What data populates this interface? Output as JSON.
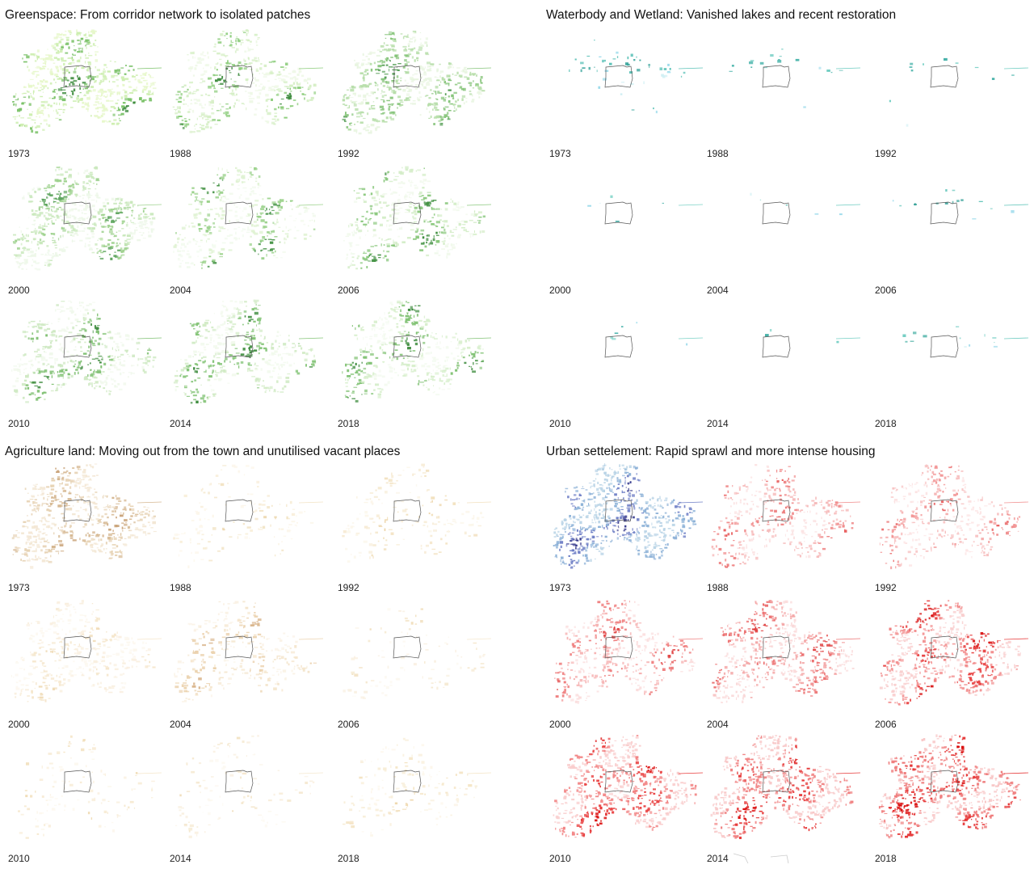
{
  "panels": [
    {
      "id": "greenspace",
      "title": "Greenspace: From corridor network to isolated patches",
      "maps": [
        {
          "year": "1973",
          "intensity": 0.9,
          "tones": [
            "#3d8b3d",
            "#7cc26a",
            "#cdeeb0",
            "#e6f7c9"
          ]
        },
        {
          "year": "1988",
          "intensity": 0.75,
          "tones": [
            "#3d8b3d",
            "#8bcc7a",
            "#d6efc6",
            "#eef8e6"
          ]
        },
        {
          "year": "1992",
          "intensity": 0.85,
          "tones": [
            "#4f9a4f",
            "#86c47a",
            "#b7deaa",
            "#e8f5e0"
          ]
        },
        {
          "year": "2000",
          "intensity": 0.95,
          "tones": [
            "#5ba35b",
            "#9fd28f",
            "#c9e8bc",
            "#edf7e8"
          ]
        },
        {
          "year": "2004",
          "intensity": 0.7,
          "tones": [
            "#4a964a",
            "#9ad18a",
            "#dff2d2",
            "#f2faee"
          ]
        },
        {
          "year": "2006",
          "intensity": 0.72,
          "tones": [
            "#3f8f3f",
            "#8ac87d",
            "#d4edc8",
            "#f1f9ec"
          ]
        },
        {
          "year": "2010",
          "intensity": 0.78,
          "tones": [
            "#3c8a3c",
            "#7fc072",
            "#cfe9c3",
            "#f0f8eb"
          ]
        },
        {
          "year": "2014",
          "intensity": 0.74,
          "tones": [
            "#3f8d3f",
            "#84c477",
            "#d2ebc6",
            "#f1f9ec"
          ]
        },
        {
          "year": "2018",
          "intensity": 0.76,
          "tones": [
            "#3e8c3e",
            "#82c275",
            "#d8efcd",
            "#f3faef"
          ]
        }
      ]
    },
    {
      "id": "waterbody",
      "title": "Waterbody and Wetland: Vanished lakes and recent restoration",
      "maps": [
        {
          "year": "1973",
          "intensity": 0.55,
          "tones": [
            "#34a39a",
            "#5cc2b8",
            "#8ed6e8",
            "#cfeff3"
          ]
        },
        {
          "year": "1988",
          "intensity": 0.28,
          "tones": [
            "#3fb0a6",
            "#6ccbc0",
            "#9fdcec",
            "#d9f2f5"
          ]
        },
        {
          "year": "1992",
          "intensity": 0.22,
          "tones": [
            "#45b1a8",
            "#74cfc4",
            "#a3def0",
            "#dbf3f6"
          ]
        },
        {
          "year": "2000",
          "intensity": 0.12,
          "tones": [
            "#4cb5ad",
            "#7cd2c7",
            "#9fdcec",
            "#def4f7"
          ]
        },
        {
          "year": "2004",
          "intensity": 0.14,
          "tones": [
            "#3aa99f",
            "#6ccbc0",
            "#9fdcec",
            "#def4f7"
          ]
        },
        {
          "year": "2006",
          "intensity": 0.2,
          "tones": [
            "#33a097",
            "#64c6bb",
            "#9adaeb",
            "#dcf3f6"
          ]
        },
        {
          "year": "2010",
          "intensity": 0.1,
          "tones": [
            "#4cb5ad",
            "#7cd2c7",
            "#9fdcec",
            "#e1f5f8"
          ]
        },
        {
          "year": "2014",
          "intensity": 0.12,
          "tones": [
            "#44b0a7",
            "#74cfc4",
            "#9fdcec",
            "#e1f5f8"
          ]
        },
        {
          "year": "2018",
          "intensity": 0.22,
          "tones": [
            "#3dab9f",
            "#6dcbc1",
            "#9adaeb",
            "#dcf3f6"
          ]
        }
      ]
    },
    {
      "id": "agriculture",
      "title": "Agriculture land: Moving out from the town and unutilised vacant places",
      "maps": [
        {
          "year": "1973",
          "intensity": 0.85,
          "tones": [
            "#c9a277",
            "#d6b892",
            "#e7d3b5",
            "#f3e7d4"
          ]
        },
        {
          "year": "1988",
          "intensity": 0.35,
          "tones": [
            "#ecd6ad",
            "#f2e3c4",
            "#f8eed9",
            "#fcf6ea"
          ]
        },
        {
          "year": "1992",
          "intensity": 0.38,
          "tones": [
            "#ecd3a6",
            "#f2e1bf",
            "#f7ecd6",
            "#fbf5e8"
          ]
        },
        {
          "year": "2000",
          "intensity": 0.65,
          "tones": [
            "#f0dcb8",
            "#f5e6cb",
            "#f9efdf",
            "#fcf7ee"
          ]
        },
        {
          "year": "2004",
          "intensity": 0.6,
          "tones": [
            "#d9b58c",
            "#ebd2ae",
            "#f4e5cc",
            "#faf2e5"
          ]
        },
        {
          "year": "2006",
          "intensity": 0.25,
          "tones": [
            "#f1dfbd",
            "#f5e8cf",
            "#f9f0e1",
            "#fcf8f0"
          ]
        },
        {
          "year": "2010",
          "intensity": 0.3,
          "tones": [
            "#f0dcb5",
            "#f5e6c9",
            "#f9efdc",
            "#fcf7ed"
          ]
        },
        {
          "year": "2014",
          "intensity": 0.28,
          "tones": [
            "#f1dfbd",
            "#f5e8cf",
            "#f9f0e1",
            "#fcf8f0"
          ]
        },
        {
          "year": "2018",
          "intensity": 0.36,
          "tones": [
            "#efd8ae",
            "#f4e4c4",
            "#f8eed9",
            "#fcf6ea"
          ]
        }
      ]
    },
    {
      "id": "urban",
      "title": "Urban settelement: Rapid sprawl and more intense housing",
      "maps": [
        {
          "year": "1973",
          "intensity": 1.0,
          "tones": [
            "#3b3f8f",
            "#6f7fc6",
            "#8fb3d8",
            "#b8d3e6"
          ]
        },
        {
          "year": "1988",
          "intensity": 0.7,
          "tones": [
            "#e85a5a",
            "#f08a8a",
            "#f6b9b9",
            "#fbe0e0"
          ]
        },
        {
          "year": "1992",
          "intensity": 0.68,
          "tones": [
            "#e96464",
            "#f29595",
            "#f7c0c0",
            "#fce3e3"
          ]
        },
        {
          "year": "2000",
          "intensity": 0.72,
          "tones": [
            "#e24848",
            "#ef8080",
            "#f6b3b3",
            "#fbdede"
          ]
        },
        {
          "year": "2004",
          "intensity": 0.82,
          "tones": [
            "#df3c3c",
            "#ec7070",
            "#f4a8a8",
            "#fad8d8"
          ]
        },
        {
          "year": "2006",
          "intensity": 0.9,
          "tones": [
            "#d91414",
            "#e84444",
            "#f28a8a",
            "#f9cfcf"
          ]
        },
        {
          "year": "2010",
          "intensity": 0.92,
          "tones": [
            "#dc0f0f",
            "#e83c3c",
            "#f28484",
            "#f9cccc"
          ]
        },
        {
          "year": "2014",
          "intensity": 0.95,
          "tones": [
            "#da0c0c",
            "#e63737",
            "#f08080",
            "#f8c8c8"
          ]
        },
        {
          "year": "2018",
          "intensity": 0.95,
          "tones": [
            "#d90a0a",
            "#e53535",
            "#ef7d7d",
            "#f8c6c6"
          ]
        }
      ]
    }
  ]
}
